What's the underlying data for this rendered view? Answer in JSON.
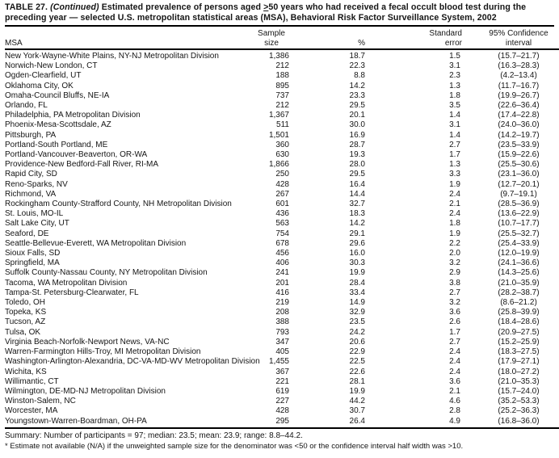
{
  "colors": {
    "text": "#151515",
    "rule": "#000000",
    "background": "#ffffff"
  },
  "document": {
    "title": {
      "prefix": "TABLE 27. ",
      "continued": "(Continued)",
      "before_ge": " Estimated prevalence of persons aged ",
      "ge_symbol": ">",
      "after_ge": "50 years who had received a fecal occult blood test during the preceding year — selected U.S. metropolitan statistical areas (MSA), Behavioral Risk Factor Surveillance System, 2002"
    },
    "columns": {
      "msa": "MSA",
      "sample_line1": "Sample",
      "sample_line2": "size",
      "percent": "%",
      "se_line1": "Standard",
      "se_line2": "error",
      "ci_line1": "95% Confidence",
      "ci_line2": "interval"
    },
    "rows": [
      {
        "msa": "New York-Wayne-White Plains, NY-NJ Metropolitan Division",
        "sample_size": "1,386",
        "percent": "18.7",
        "standard_error": "1.5",
        "confidence_interval": "(15.7–21.7)"
      },
      {
        "msa": "Norwich-New London, CT",
        "sample_size": "212",
        "percent": "22.3",
        "standard_error": "3.1",
        "confidence_interval": "(16.3–28.3)"
      },
      {
        "msa": "Ogden-Clearfield, UT",
        "sample_size": "188",
        "percent": "8.8",
        "standard_error": "2.3",
        "confidence_interval": "(4.2–13.4)"
      },
      {
        "msa": "Oklahoma City, OK",
        "sample_size": "895",
        "percent": "14.2",
        "standard_error": "1.3",
        "confidence_interval": "(11.7–16.7)"
      },
      {
        "msa": "Omaha-Council Bluffs, NE-IA",
        "sample_size": "737",
        "percent": "23.3",
        "standard_error": "1.8",
        "confidence_interval": "(19.9–26.7)"
      },
      {
        "msa": "Orlando, FL",
        "sample_size": "212",
        "percent": "29.5",
        "standard_error": "3.5",
        "confidence_interval": "(22.6–36.4)"
      },
      {
        "msa": "Philadelphia, PA Metropolitan Division",
        "sample_size": "1,367",
        "percent": "20.1",
        "standard_error": "1.4",
        "confidence_interval": "(17.4–22.8)"
      },
      {
        "msa": "Phoenix-Mesa-Scottsdale, AZ",
        "sample_size": "511",
        "percent": "30.0",
        "standard_error": "3.1",
        "confidence_interval": "(24.0–36.0)"
      },
      {
        "msa": "Pittsburgh, PA",
        "sample_size": "1,501",
        "percent": "16.9",
        "standard_error": "1.4",
        "confidence_interval": "(14.2–19.7)"
      },
      {
        "msa": "Portland-South Portland, ME",
        "sample_size": "360",
        "percent": "28.7",
        "standard_error": "2.7",
        "confidence_interval": "(23.5–33.9)"
      },
      {
        "msa": "Portland-Vancouver-Beaverton, OR-WA",
        "sample_size": "630",
        "percent": "19.3",
        "standard_error": "1.7",
        "confidence_interval": "(15.9–22.6)"
      },
      {
        "msa": "Providence-New Bedford-Fall River, RI-MA",
        "sample_size": "1,866",
        "percent": "28.0",
        "standard_error": "1.3",
        "confidence_interval": "(25.5–30.6)"
      },
      {
        "msa": "Rapid City, SD",
        "sample_size": "250",
        "percent": "29.5",
        "standard_error": "3.3",
        "confidence_interval": "(23.1–36.0)"
      },
      {
        "msa": "Reno-Sparks, NV",
        "sample_size": "428",
        "percent": "16.4",
        "standard_error": "1.9",
        "confidence_interval": "(12.7–20.1)"
      },
      {
        "msa": "Richmond, VA",
        "sample_size": "267",
        "percent": "14.4",
        "standard_error": "2.4",
        "confidence_interval": "(9.7–19.1)"
      },
      {
        "msa": "Rockingham County-Strafford County, NH Metropolitan Division",
        "sample_size": "601",
        "percent": "32.7",
        "standard_error": "2.1",
        "confidence_interval": "(28.5–36.9)"
      },
      {
        "msa": "St. Louis, MO-IL",
        "sample_size": "436",
        "percent": "18.3",
        "standard_error": "2.4",
        "confidence_interval": "(13.6–22.9)"
      },
      {
        "msa": "Salt Lake City, UT",
        "sample_size": "563",
        "percent": "14.2",
        "standard_error": "1.8",
        "confidence_interval": "(10.7–17.7)"
      },
      {
        "msa": "Seaford, DE",
        "sample_size": "754",
        "percent": "29.1",
        "standard_error": "1.9",
        "confidence_interval": "(25.5–32.7)"
      },
      {
        "msa": "Seattle-Bellevue-Everett, WA Metropolitan Division",
        "sample_size": "678",
        "percent": "29.6",
        "standard_error": "2.2",
        "confidence_interval": "(25.4–33.9)"
      },
      {
        "msa": "Sioux Falls, SD",
        "sample_size": "456",
        "percent": "16.0",
        "standard_error": "2.0",
        "confidence_interval": "(12.0–19.9)"
      },
      {
        "msa": "Springfield, MA",
        "sample_size": "406",
        "percent": "30.3",
        "standard_error": "3.2",
        "confidence_interval": "(24.1–36.6)"
      },
      {
        "msa": "Suffolk County-Nassau County, NY Metropolitan Division",
        "sample_size": "241",
        "percent": "19.9",
        "standard_error": "2.9",
        "confidence_interval": "(14.3–25.6)"
      },
      {
        "msa": "Tacoma, WA Metropolitan Division",
        "sample_size": "201",
        "percent": "28.4",
        "standard_error": "3.8",
        "confidence_interval": "(21.0–35.9)"
      },
      {
        "msa": "Tampa-St. Petersburg-Clearwater, FL",
        "sample_size": "416",
        "percent": "33.4",
        "standard_error": "2.7",
        "confidence_interval": "(28.2–38.7)"
      },
      {
        "msa": "Toledo, OH",
        "sample_size": "219",
        "percent": "14.9",
        "standard_error": "3.2",
        "confidence_interval": "(8.6–21.2)"
      },
      {
        "msa": "Topeka, KS",
        "sample_size": "208",
        "percent": "32.9",
        "standard_error": "3.6",
        "confidence_interval": "(25.8–39.9)"
      },
      {
        "msa": "Tucson, AZ",
        "sample_size": "388",
        "percent": "23.5",
        "standard_error": "2.6",
        "confidence_interval": "(18.4–28.6)"
      },
      {
        "msa": "Tulsa, OK",
        "sample_size": "793",
        "percent": "24.2",
        "standard_error": "1.7",
        "confidence_interval": "(20.9–27.5)"
      },
      {
        "msa": "Virginia Beach-Norfolk-Newport News, VA-NC",
        "sample_size": "347",
        "percent": "20.6",
        "standard_error": "2.7",
        "confidence_interval": "(15.2–25.9)"
      },
      {
        "msa": "Warren-Farmington Hills-Troy, MI Metropolitan Division",
        "sample_size": "405",
        "percent": "22.9",
        "standard_error": "2.4",
        "confidence_interval": "(18.3–27.5)"
      },
      {
        "msa": "Washington-Arlington-Alexandria, DC-VA-MD-WV Metropolitan Division",
        "sample_size": "1,455",
        "percent": "22.5",
        "standard_error": "2.4",
        "confidence_interval": "(17.9–27.1)"
      },
      {
        "msa": "Wichita, KS",
        "sample_size": "367",
        "percent": "22.6",
        "standard_error": "2.4",
        "confidence_interval": "(18.0–27.2)"
      },
      {
        "msa": "Willimantic, CT",
        "sample_size": "221",
        "percent": "28.1",
        "standard_error": "3.6",
        "confidence_interval": "(21.0–35.3)"
      },
      {
        "msa": "Wilmington, DE-MD-NJ Metropolitan Division",
        "sample_size": "619",
        "percent": "19.9",
        "standard_error": "2.1",
        "confidence_interval": "(15.7–24.0)"
      },
      {
        "msa": "Winston-Salem, NC",
        "sample_size": "227",
        "percent": "44.2",
        "standard_error": "4.6",
        "confidence_interval": "(35.2–53.3)"
      },
      {
        "msa": "Worcester, MA",
        "sample_size": "428",
        "percent": "30.7",
        "standard_error": "2.8",
        "confidence_interval": "(25.2–36.3)"
      },
      {
        "msa": "Youngstown-Warren-Boardman, OH-PA",
        "sample_size": "295",
        "percent": "26.4",
        "standard_error": "4.9",
        "confidence_interval": "(16.8–36.0)"
      }
    ],
    "summary": "Summary: Number of participants = 97; median: 23.5; mean: 23.9; range: 8.8–44.2.",
    "footnote": "* Estimate not available (N/A) if the unweighted sample size for the denominator was <50 or the confidence interval half width was >10."
  }
}
